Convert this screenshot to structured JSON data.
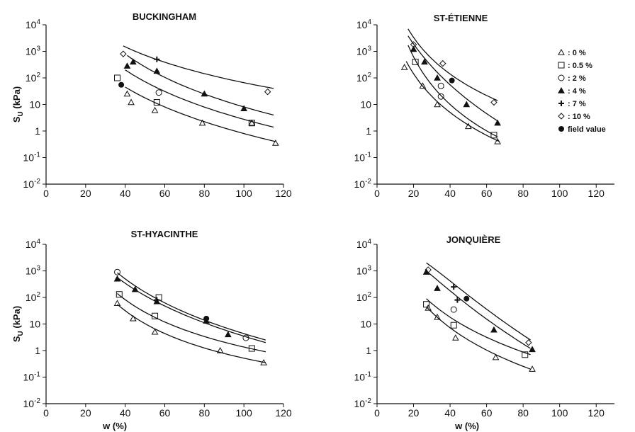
{
  "chart_data": [
    {
      "type": "scatter",
      "title": "BUCKINGHAM",
      "ylabel_main": "S",
      "ylabel_sub": "U",
      "ylabel_unit": " (kPa)",
      "xlabel": "",
      "xlim": [
        0,
        120
      ],
      "ylim": [
        0.01,
        10000
      ],
      "yscale": "log",
      "x_ticks": [
        "0",
        "20",
        "40",
        "60",
        "80",
        "100",
        "120"
      ],
      "y_ticks": [
        {
          "base": "10",
          "exp": "4"
        },
        {
          "base": "10",
          "exp": "3"
        },
        {
          "base": "10",
          "exp": "2"
        },
        {
          "base": "10",
          "exp": ""
        },
        {
          "base": "1",
          "exp": ""
        },
        {
          "base": "10",
          "exp": "-1"
        },
        {
          "base": "10",
          "exp": "-2"
        }
      ],
      "series": [
        {
          "name": "0 %",
          "marker": "triangle-open",
          "points": [
            [
              41,
              25
            ],
            [
              43,
              12
            ],
            [
              55,
              6
            ],
            [
              79,
              2
            ],
            [
              104,
              2
            ],
            [
              116,
              0.35
            ]
          ]
        },
        {
          "name": "0.5 %",
          "marker": "square-open",
          "points": [
            [
              36,
              100
            ],
            [
              56,
              12
            ],
            [
              104,
              2
            ]
          ]
        },
        {
          "name": "2 %",
          "marker": "circle-open",
          "points": [
            [
              57,
              28
            ]
          ]
        },
        {
          "name": "4 %",
          "marker": "triangle-filled",
          "points": [
            [
              41,
              280
            ],
            [
              44,
              400
            ],
            [
              56,
              180
            ],
            [
              80,
              25
            ],
            [
              100,
              7
            ]
          ]
        },
        {
          "name": "7 %",
          "marker": "plus",
          "points": [
            [
              56,
              500
            ]
          ]
        },
        {
          "name": "10 %",
          "marker": "diamond-open",
          "points": [
            [
              39,
              800
            ],
            [
              112,
              30
            ]
          ]
        },
        {
          "name": "field value",
          "marker": "circle-filled",
          "points": [
            [
              38,
              55
            ]
          ]
        }
      ],
      "curves": [
        [
          [
            39,
            1600
          ],
          [
            70,
            230
          ],
          [
            115,
            40
          ]
        ],
        [
          [
            41,
            700
          ],
          [
            65,
            70
          ],
          [
            115,
            4
          ]
        ],
        [
          [
            40,
            200
          ],
          [
            70,
            15
          ],
          [
            115,
            1.4
          ]
        ],
        [
          [
            40,
            45
          ],
          [
            75,
            3
          ],
          [
            116,
            0.4
          ]
        ]
      ]
    },
    {
      "type": "scatter",
      "title": "ST-ÉTIENNE",
      "ylabel_main": "",
      "ylabel_sub": "",
      "ylabel_unit": "",
      "xlabel": "",
      "xlim": [
        0,
        130
      ],
      "ylim": [
        0.01,
        10000
      ],
      "yscale": "log",
      "x_ticks": [
        "0",
        "20",
        "40",
        "60",
        "80",
        "100",
        "120"
      ],
      "y_ticks": [
        {
          "base": "10",
          "exp": "4"
        },
        {
          "base": "10",
          "exp": "3"
        },
        {
          "base": "10",
          "exp": "2"
        },
        {
          "base": "10",
          "exp": ""
        },
        {
          "base": "1",
          "exp": ""
        },
        {
          "base": "10",
          "exp": "-1"
        },
        {
          "base": "10",
          "exp": "-2"
        }
      ],
      "series": [
        {
          "name": "0 %",
          "marker": "triangle-open",
          "points": [
            [
              15,
              250
            ],
            [
              25,
              50
            ],
            [
              33,
              10
            ],
            [
              50,
              1.5
            ],
            [
              66,
              0.4
            ]
          ]
        },
        {
          "name": "0.5 %",
          "marker": "square-open",
          "points": [
            [
              21,
              400
            ],
            [
              64,
              0.7
            ]
          ]
        },
        {
          "name": "2 %",
          "marker": "circle-open",
          "points": [
            [
              35,
              50
            ],
            [
              35,
              20
            ]
          ]
        },
        {
          "name": "4 %",
          "marker": "triangle-filled",
          "points": [
            [
              20,
              1200
            ],
            [
              26,
              400
            ],
            [
              33,
              100
            ],
            [
              49,
              10
            ],
            [
              66,
              2
            ]
          ]
        },
        {
          "name": "7 %",
          "marker": "plus",
          "points": []
        },
        {
          "name": "10 %",
          "marker": "diamond-open",
          "points": [
            [
              20,
              1800
            ],
            [
              36,
              350
            ],
            [
              64,
              12
            ]
          ]
        },
        {
          "name": "field value",
          "marker": "circle-filled",
          "points": [
            [
              41,
              80
            ]
          ]
        }
      ],
      "curves": [
        [
          [
            17,
            7000
          ],
          [
            40,
            140
          ],
          [
            66,
            14
          ]
        ],
        [
          [
            17,
            3800
          ],
          [
            40,
            55
          ],
          [
            66,
            2.4
          ]
        ],
        [
          [
            17,
            1700
          ],
          [
            40,
            10
          ],
          [
            66,
            0.6
          ]
        ],
        [
          [
            16,
            420
          ],
          [
            40,
            5
          ],
          [
            67,
            0.4
          ]
        ]
      ],
      "legend": {
        "placement": "right",
        "entries": [
          {
            "marker": "triangle-open",
            "label": ": 0 %"
          },
          {
            "marker": "square-open",
            "label": ": 0.5 %"
          },
          {
            "marker": "circle-open",
            "label": ": 2 %"
          },
          {
            "marker": "triangle-filled",
            "label": ": 4 %"
          },
          {
            "marker": "plus",
            "label": ": 7 %"
          },
          {
            "marker": "diamond-open",
            "label": ": 10 %"
          },
          {
            "marker": "circle-filled",
            "label": "field value"
          }
        ]
      }
    },
    {
      "type": "scatter",
      "title": "ST-HYACINTHE",
      "ylabel_main": "S",
      "ylabel_sub": "U",
      "ylabel_unit": " (kPa)",
      "xlabel": "w (%)",
      "xlim": [
        0,
        120
      ],
      "ylim": [
        0.01,
        10000
      ],
      "yscale": "log",
      "x_ticks": [
        "0",
        "20",
        "40",
        "60",
        "80",
        "100",
        "120"
      ],
      "y_ticks": [
        {
          "base": "10",
          "exp": "4"
        },
        {
          "base": "10",
          "exp": "3"
        },
        {
          "base": "10",
          "exp": "2"
        },
        {
          "base": "10",
          "exp": ""
        },
        {
          "base": "1",
          "exp": ""
        },
        {
          "base": "10",
          "exp": "-1"
        },
        {
          "base": "10",
          "exp": "-2"
        }
      ],
      "series": [
        {
          "name": "0 %",
          "marker": "triangle-open",
          "points": [
            [
              36,
              60
            ],
            [
              44,
              16
            ],
            [
              55,
              5
            ],
            [
              88,
              1
            ],
            [
              110,
              0.35
            ]
          ]
        },
        {
          "name": "0.5 %",
          "marker": "square-open",
          "points": [
            [
              37,
              130
            ],
            [
              55,
              20
            ],
            [
              57,
              100
            ],
            [
              104,
              1.2
            ]
          ]
        },
        {
          "name": "2 %",
          "marker": "circle-open",
          "points": [
            [
              36,
              900
            ],
            [
              101,
              3
            ]
          ]
        },
        {
          "name": "4 %",
          "marker": "triangle-filled",
          "points": [
            [
              36,
              500
            ],
            [
              45,
              200
            ],
            [
              56,
              70
            ],
            [
              81,
              13
            ],
            [
              92,
              4
            ]
          ]
        },
        {
          "name": "7 %",
          "marker": "plus",
          "points": [
            [
              56,
              80
            ]
          ]
        },
        {
          "name": "10 %",
          "marker": "diamond-open",
          "points": []
        },
        {
          "name": "field value",
          "marker": "circle-filled",
          "points": [
            [
              81,
              16
            ]
          ]
        }
      ],
      "curves": [
        [
          [
            36,
            850
          ],
          [
            70,
            28
          ],
          [
            111,
            2.5
          ]
        ],
        [
          [
            36,
            560
          ],
          [
            70,
            22
          ],
          [
            111,
            2
          ]
        ],
        [
          [
            36,
            140
          ],
          [
            70,
            6
          ],
          [
            111,
            0.9
          ]
        ],
        [
          [
            36,
            55
          ],
          [
            70,
            2.2
          ],
          [
            111,
            0.35
          ]
        ]
      ]
    },
    {
      "type": "scatter",
      "title": "JONQUIÈRE",
      "ylabel_main": "",
      "ylabel_sub": "",
      "ylabel_unit": "",
      "xlabel": "w (%)",
      "xlim": [
        0,
        130
      ],
      "ylim": [
        0.01,
        10000
      ],
      "yscale": "log",
      "x_ticks": [
        "0",
        "20",
        "40",
        "60",
        "80",
        "100",
        "120"
      ],
      "y_ticks": [
        {
          "base": "10",
          "exp": "4"
        },
        {
          "base": "10",
          "exp": "3"
        },
        {
          "base": "10",
          "exp": "2"
        },
        {
          "base": "10",
          "exp": ""
        },
        {
          "base": "1",
          "exp": ""
        },
        {
          "base": "10",
          "exp": "-1"
        },
        {
          "base": "10",
          "exp": "-2"
        }
      ],
      "series": [
        {
          "name": "0 %",
          "marker": "triangle-open",
          "points": [
            [
              28,
              40
            ],
            [
              33,
              18
            ],
            [
              43,
              3
            ],
            [
              65,
              0.55
            ],
            [
              85,
              0.2
            ]
          ]
        },
        {
          "name": "0.5 %",
          "marker": "square-open",
          "points": [
            [
              27,
              55
            ],
            [
              42,
              9
            ],
            [
              81,
              0.7
            ]
          ]
        },
        {
          "name": "2 %",
          "marker": "circle-open",
          "points": [
            [
              42,
              35
            ]
          ]
        },
        {
          "name": "4 %",
          "marker": "triangle-filled",
          "points": [
            [
              27,
              900
            ],
            [
              33,
              220
            ],
            [
              64,
              6
            ],
            [
              85,
              1.1
            ]
          ]
        },
        {
          "name": "7 %",
          "marker": "plus",
          "points": [
            [
              42,
              250
            ],
            [
              44,
              80
            ]
          ]
        },
        {
          "name": "10 %",
          "marker": "diamond-open",
          "points": [
            [
              28,
              1100
            ],
            [
              83,
              2
            ]
          ]
        },
        {
          "name": "field value",
          "marker": "circle-filled",
          "points": [
            [
              49,
              90
            ]
          ]
        }
      ],
      "curves": [
        [
          [
            27,
            2000
          ],
          [
            50,
            120
          ],
          [
            84,
            2.5
          ]
        ],
        [
          [
            27,
            1000
          ],
          [
            50,
            50
          ],
          [
            84,
            1.2
          ]
        ],
        [
          [
            27,
            90
          ],
          [
            50,
            7
          ],
          [
            84,
            0.7
          ]
        ],
        [
          [
            27,
            45
          ],
          [
            50,
            2.5
          ],
          [
            84,
            0.2
          ]
        ]
      ]
    }
  ]
}
